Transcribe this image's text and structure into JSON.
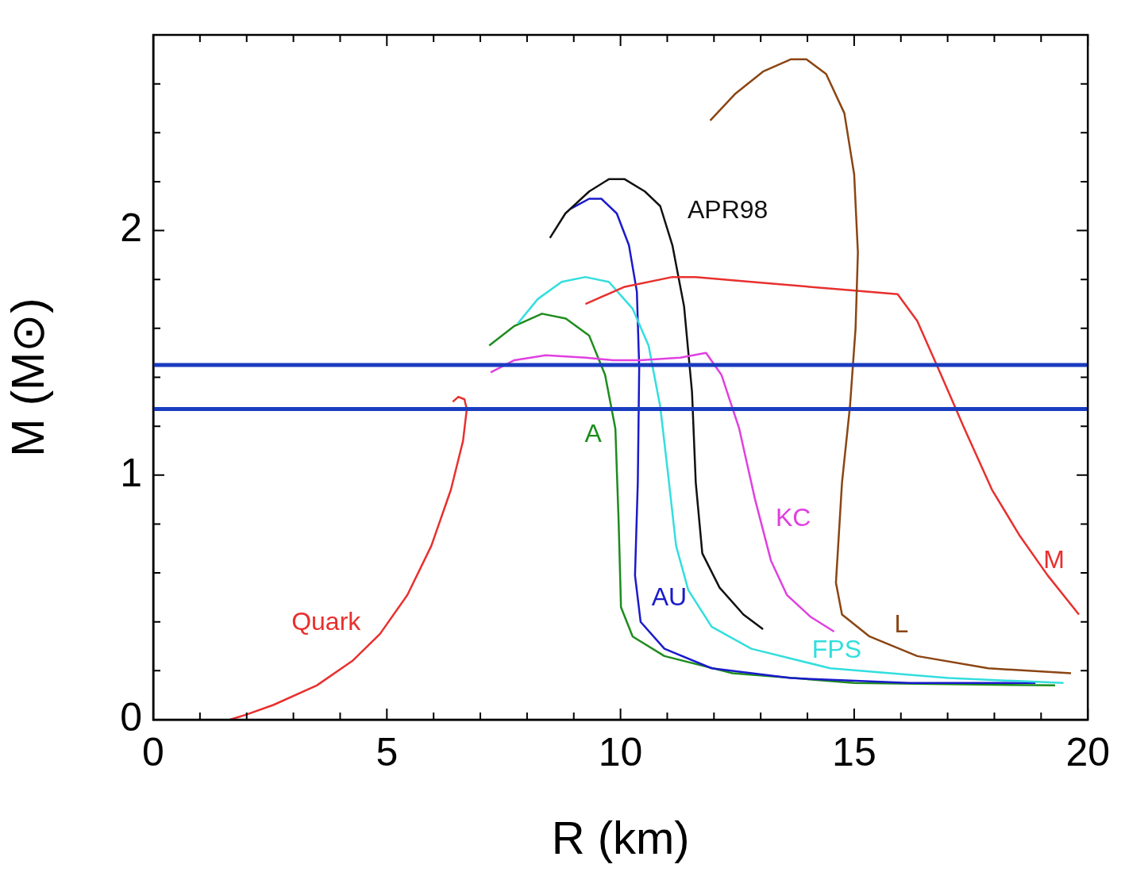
{
  "chart_data": {
    "type": "line",
    "xlabel": "R (km)",
    "ylabel": "M (M⊙)",
    "xlim": [
      0,
      20
    ],
    "ylim": [
      0,
      2.8
    ],
    "xticks": [
      0,
      {
        "value": 1,
        "label": null
      },
      {
        "value": 2,
        "label": null
      },
      {
        "value": 3,
        "label": null
      },
      {
        "value": 4,
        "label": null
      },
      5,
      {
        "value": 6,
        "label": null
      },
      {
        "value": 7,
        "label": null
      },
      {
        "value": 8,
        "label": null
      },
      {
        "value": 9,
        "label": null
      },
      10,
      {
        "value": 11,
        "label": null
      },
      {
        "value": 12,
        "label": null
      },
      {
        "value": 13,
        "label": null
      },
      {
        "value": 14,
        "label": null
      },
      15,
      {
        "value": 16,
        "label": null
      },
      {
        "value": 17,
        "label": null
      },
      {
        "value": 18,
        "label": null
      },
      {
        "value": 19,
        "label": null
      },
      20
    ],
    "yticks": [
      0,
      {
        "value": 0.2,
        "label": null
      },
      {
        "value": 0.4,
        "label": null
      },
      {
        "value": 0.6,
        "label": null
      },
      {
        "value": 0.8,
        "label": null
      },
      1,
      {
        "value": 1.2,
        "label": null
      },
      {
        "value": 1.4,
        "label": null
      },
      {
        "value": 1.6,
        "label": null
      },
      {
        "value": 1.8,
        "label": null
      },
      2,
      {
        "value": 2.2,
        "label": null
      },
      {
        "value": 2.4,
        "label": null
      },
      {
        "value": 2.6,
        "label": null
      }
    ],
    "grid": false,
    "legend": false,
    "marker": "none",
    "line_style": "solid",
    "series": [
      {
        "name": "Quark",
        "color": "#e8302e",
        "x": [
          1.64,
          1.98,
          2.57,
          3.5,
          4.26,
          4.85,
          5.44,
          5.95,
          6.37,
          6.63,
          6.71,
          6.66,
          6.53,
          6.41
        ],
        "values": [
          0,
          0.02,
          0.06,
          0.14,
          0.24,
          0.35,
          0.51,
          0.71,
          0.94,
          1.14,
          1.27,
          1.31,
          1.32,
          1.3
        ]
      },
      {
        "name": "A",
        "color": "#1e8c1e",
        "x": [
          7.19,
          7.73,
          8.32,
          8.83,
          9.33,
          9.67,
          9.89,
          9.96,
          10.01,
          10.26,
          10.94,
          12.4,
          15.0,
          19.3
        ],
        "values": [
          1.53,
          1.61,
          1.66,
          1.64,
          1.57,
          1.41,
          1.19,
          0.81,
          0.46,
          0.34,
          0.26,
          0.19,
          0.15,
          0.14
        ]
      },
      {
        "name": "AU",
        "color": "#1a1acc",
        "x": [
          8.94,
          9.33,
          9.59,
          9.92,
          10.18,
          10.35,
          10.4,
          10.37,
          10.31,
          10.43,
          10.94,
          11.95,
          13.64,
          16.18,
          18.88
        ],
        "values": [
          2.09,
          2.13,
          2.13,
          2.07,
          1.94,
          1.75,
          1.44,
          0.97,
          0.59,
          0.4,
          0.29,
          0.21,
          0.17,
          0.15,
          0.15
        ]
      },
      {
        "name": "APR98",
        "color": "#111111",
        "x": [
          8.49,
          8.82,
          9.33,
          9.75,
          10.09,
          10.52,
          10.85,
          11.11,
          11.36,
          11.53,
          11.61,
          11.75,
          12.12,
          12.63,
          13.05
        ],
        "values": [
          1.97,
          2.07,
          2.16,
          2.21,
          2.21,
          2.16,
          2.1,
          1.94,
          1.69,
          1.34,
          0.97,
          0.68,
          0.54,
          0.43,
          0.37
        ]
      },
      {
        "name": "FPS",
        "color": "#33dede",
        "x": [
          7.8,
          8.23,
          8.74,
          9.25,
          9.75,
          10.26,
          10.6,
          10.85,
          11.02,
          11.19,
          11.45,
          11.95,
          12.8,
          14.49,
          17.02,
          19.48
        ],
        "values": [
          1.62,
          1.72,
          1.79,
          1.81,
          1.79,
          1.68,
          1.53,
          1.28,
          1.0,
          0.71,
          0.53,
          0.38,
          0.29,
          0.21,
          0.17,
          0.15
        ]
      },
      {
        "name": "KC",
        "color": "#e040e0",
        "x": [
          7.22,
          7.73,
          8.4,
          9.25,
          9.84,
          10.43,
          11.28,
          11.83,
          12.16,
          12.54,
          12.88,
          13.22,
          13.56,
          14.07,
          14.57
        ],
        "values": [
          1.42,
          1.47,
          1.49,
          1.48,
          1.47,
          1.47,
          1.48,
          1.5,
          1.41,
          1.19,
          0.9,
          0.65,
          0.51,
          0.42,
          0.36
        ]
      },
      {
        "name": "M",
        "color": "#e8302e",
        "x": [
          9.25,
          10.09,
          11.11,
          11.61,
          12.8,
          14.66,
          15.93,
          16.35,
          16.86,
          17.36,
          17.95,
          18.55,
          19.14,
          19.81
        ],
        "values": [
          1.7,
          1.77,
          1.81,
          1.81,
          1.79,
          1.76,
          1.74,
          1.63,
          1.41,
          1.19,
          0.94,
          0.75,
          0.59,
          0.43
        ]
      },
      {
        "name": "L",
        "color": "#8b4513",
        "x": [
          11.92,
          12.46,
          13.05,
          13.64,
          13.98,
          14.4,
          14.79,
          15.0,
          15.08,
          15.03,
          14.91,
          14.74,
          14.61,
          14.74,
          15.33,
          16.35,
          17.87,
          19.64
        ],
        "values": [
          2.45,
          2.56,
          2.65,
          2.7,
          2.7,
          2.64,
          2.48,
          2.23,
          1.91,
          1.6,
          1.28,
          0.97,
          0.56,
          0.43,
          0.34,
          0.26,
          0.21,
          0.19
        ]
      }
    ],
    "ref_lines": [
      {
        "axis": "y",
        "value": 1.45,
        "color": "#1a3cc0"
      },
      {
        "axis": "y",
        "value": 1.27,
        "color": "#1a3cc0"
      }
    ]
  }
}
